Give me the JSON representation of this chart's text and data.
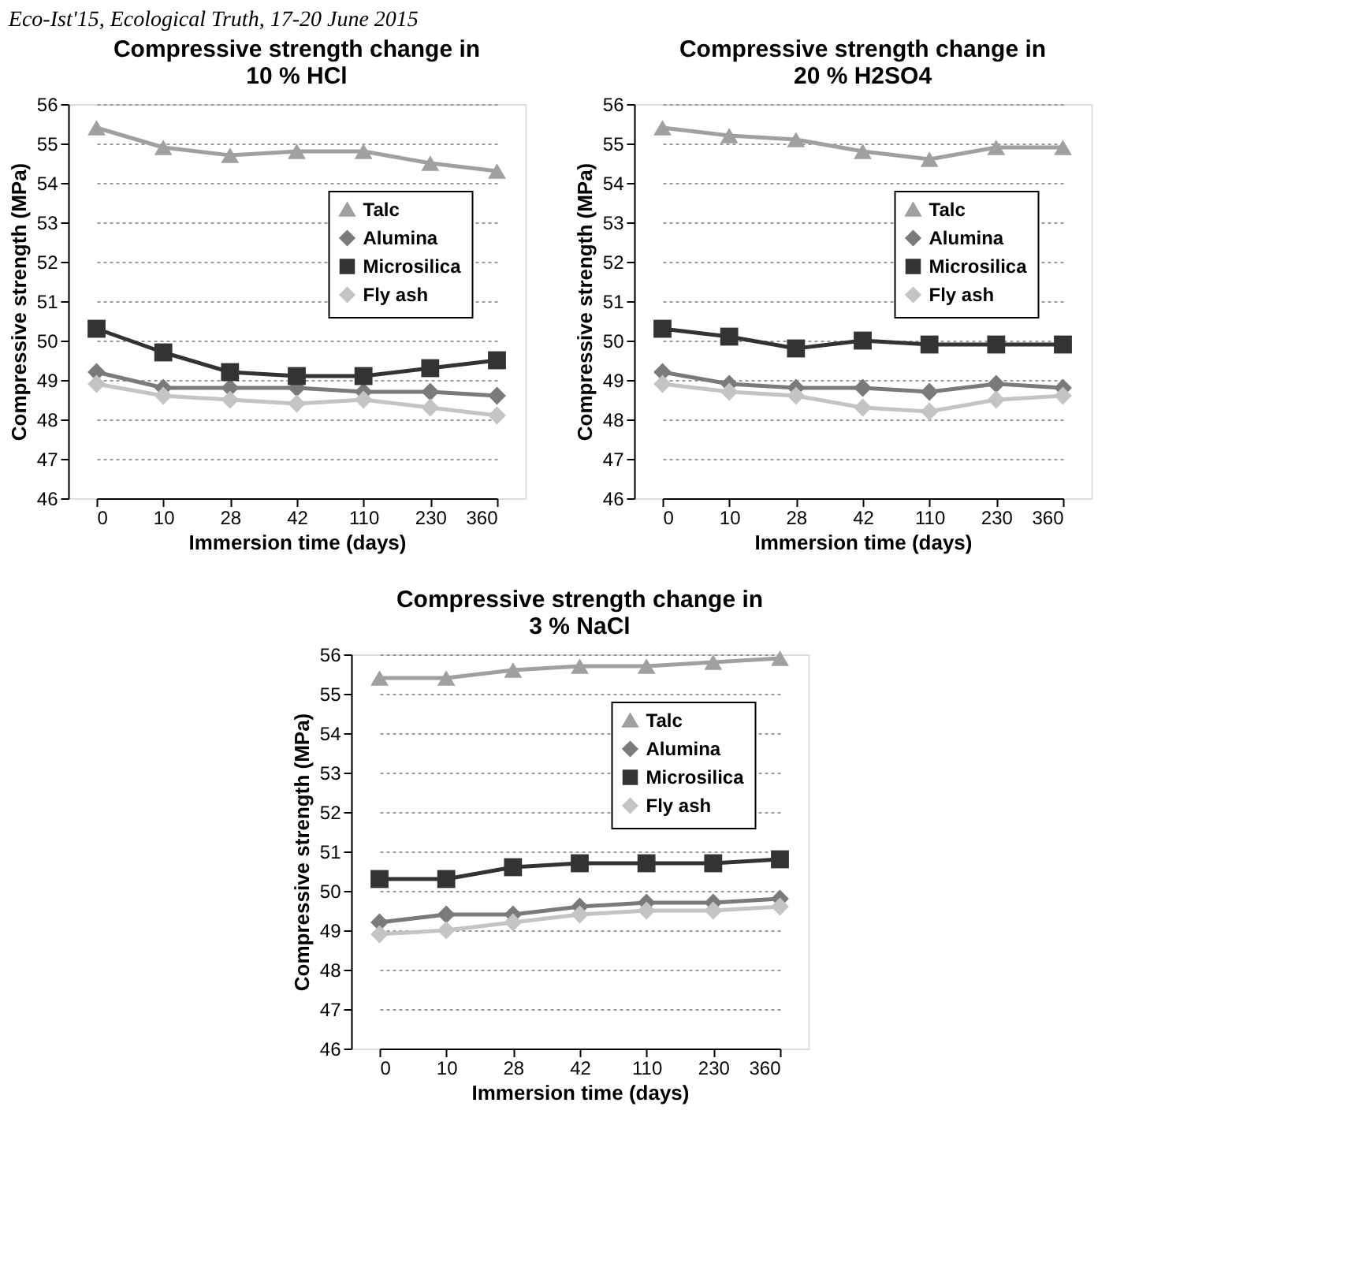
{
  "chart_data": [
    {
      "type": "line",
      "title": "Compressive strength change in 10 % HCl",
      "xlabel": "Immersion time (days)",
      "ylabel": "Compressive strength (MPa)",
      "categories": [
        "0",
        "10",
        "28",
        "42",
        "110",
        "230",
        "360"
      ],
      "ylim": [
        46,
        56
      ],
      "yticks": [
        46,
        47,
        48,
        49,
        50,
        51,
        52,
        53,
        54,
        55,
        56
      ],
      "grid": "y",
      "legend": "right",
      "annotations": [
        "Eco-Ist'15, Ecological Truth, 17-20 June 2015"
      ],
      "series": [
        {
          "name": "Talc",
          "color": "#a0a0a0",
          "marker": "triangle",
          "values": [
            55.4,
            54.9,
            54.7,
            54.8,
            54.8,
            54.5,
            54.3
          ]
        },
        {
          "name": "Alumina",
          "color": "#7a7a7a",
          "marker": "diamond",
          "values": [
            49.2,
            48.8,
            48.8,
            48.8,
            48.7,
            48.7,
            48.6
          ]
        },
        {
          "name": "Microsilica",
          "color": "#333333",
          "marker": "square",
          "values": [
            50.3,
            49.7,
            49.2,
            49.1,
            49.1,
            49.3,
            49.5
          ]
        },
        {
          "name": "Fly ash",
          "color": "#c4c4c4",
          "marker": "diamond",
          "values": [
            48.9,
            48.6,
            48.5,
            48.4,
            48.5,
            48.3,
            48.1
          ]
        }
      ]
    },
    {
      "type": "line",
      "title": "Compressive strength change in 20 % H2SO4",
      "xlabel": "Immersion time (days)",
      "ylabel": "Compressive strength (MPa)",
      "categories": [
        "0",
        "10",
        "28",
        "42",
        "110",
        "230",
        "360"
      ],
      "ylim": [
        46,
        56
      ],
      "yticks": [
        46,
        47,
        48,
        49,
        50,
        51,
        52,
        53,
        54,
        55,
        56
      ],
      "grid": "y",
      "legend": "right",
      "series": [
        {
          "name": "Talc",
          "color": "#a0a0a0",
          "marker": "triangle",
          "values": [
            55.4,
            55.2,
            55.1,
            54.8,
            54.6,
            54.9,
            54.9
          ]
        },
        {
          "name": "Alumina",
          "color": "#7a7a7a",
          "marker": "diamond",
          "values": [
            49.2,
            48.9,
            48.8,
            48.8,
            48.7,
            48.9,
            48.8
          ]
        },
        {
          "name": "Microsilica",
          "color": "#333333",
          "marker": "square",
          "values": [
            50.3,
            50.1,
            49.8,
            50.0,
            49.9,
            49.9,
            49.9
          ]
        },
        {
          "name": "Fly ash",
          "color": "#c4c4c4",
          "marker": "diamond",
          "values": [
            48.9,
            48.7,
            48.6,
            48.3,
            48.2,
            48.5,
            48.6
          ]
        }
      ]
    },
    {
      "type": "line",
      "title": "Compressive strength change in 3 % NaCl",
      "xlabel": "Immersion time (days)",
      "ylabel": "Compressive strength (MPa)",
      "categories": [
        "0",
        "10",
        "28",
        "42",
        "110",
        "230",
        "360"
      ],
      "ylim": [
        46,
        56
      ],
      "yticks": [
        46,
        47,
        48,
        49,
        50,
        51,
        52,
        53,
        54,
        55,
        56
      ],
      "grid": "y",
      "legend": "top right",
      "series": [
        {
          "name": "Talc",
          "color": "#a0a0a0",
          "marker": "triangle",
          "values": [
            55.4,
            55.4,
            55.6,
            55.7,
            55.7,
            55.8,
            55.9
          ]
        },
        {
          "name": "Alumina",
          "color": "#7a7a7a",
          "marker": "diamond",
          "values": [
            49.2,
            49.4,
            49.4,
            49.6,
            49.7,
            49.7,
            49.8
          ]
        },
        {
          "name": "Microsilica",
          "color": "#333333",
          "marker": "square",
          "values": [
            50.3,
            50.3,
            50.6,
            50.7,
            50.7,
            50.7,
            50.8
          ]
        },
        {
          "name": "Fly ash",
          "color": "#c4c4c4",
          "marker": "diamond",
          "values": [
            48.9,
            49.0,
            49.2,
            49.4,
            49.5,
            49.5,
            49.6
          ]
        }
      ]
    }
  ]
}
